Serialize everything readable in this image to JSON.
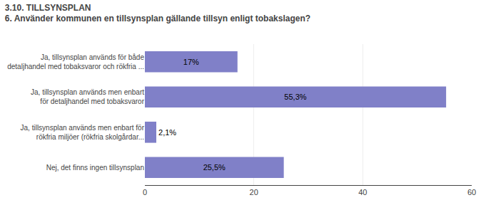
{
  "chart_data": {
    "type": "bar",
    "orientation": "horizontal",
    "title": "3.10. TILLSYNSPLAN",
    "subtitle": "6. Använder kommunen en tillsynsplan gällande tillsyn enligt tobakslagen?",
    "categories": [
      "Ja, tillsynsplan används för både\ndetaljhandel med tobaksvaror och rökfria ...",
      "Ja, tillsynsplan används men enbart\nför detaljhandel med tobaksvaror",
      "Ja, tillsynsplan används men enbart för\nrökfria miljöer (rökfria skolgårdar...",
      "Nej, det finns ingen tillsynsplan"
    ],
    "values": [
      17.0,
      55.3,
      2.1,
      25.5
    ],
    "value_labels": [
      "17%",
      "55,3%",
      "2,1%",
      "25,5%"
    ],
    "data_labels": true,
    "color": "#8080c8",
    "xlim": [
      0,
      60
    ],
    "xticks": [
      0,
      20,
      40,
      60
    ],
    "grid": true
  }
}
